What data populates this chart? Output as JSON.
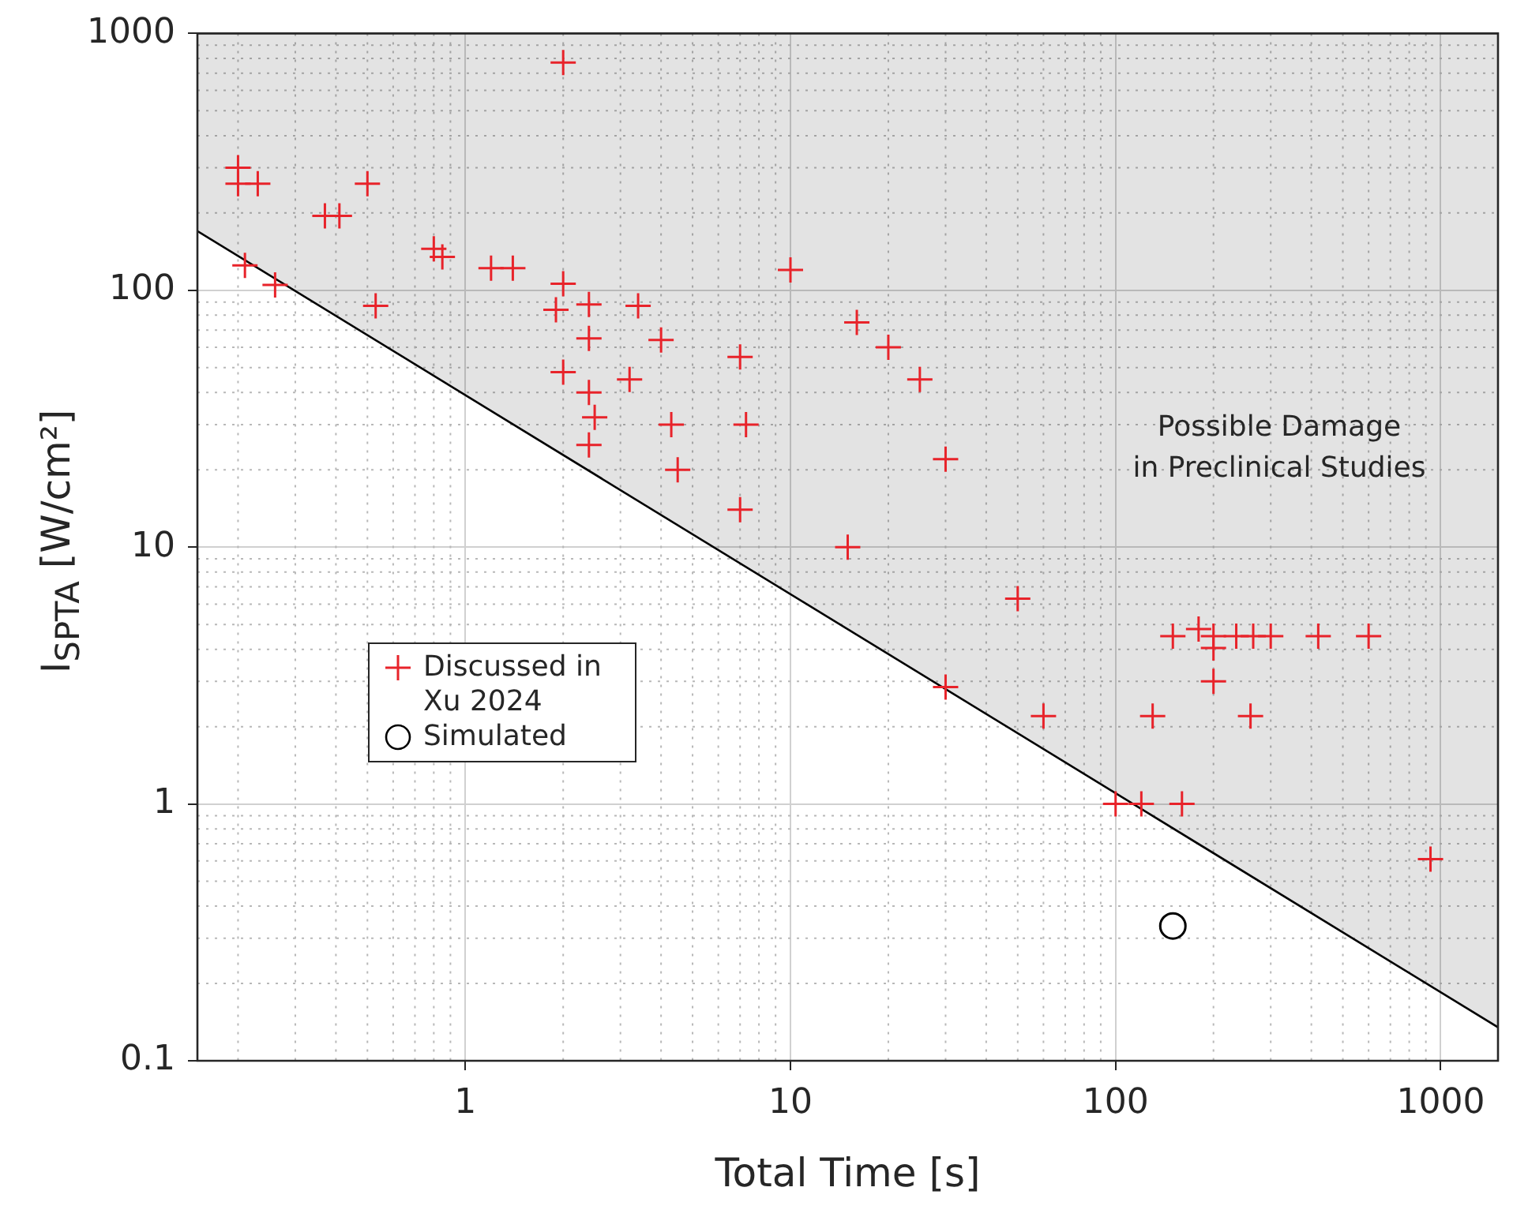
{
  "chart_data": {
    "type": "scatter",
    "xlabel": "Total Time [s]",
    "ylabel": "I$_{SPTA}$  [W/cm²]",
    "log": "xy",
    "xlim": [
      0.15,
      1500
    ],
    "xticks": [
      1,
      10,
      100,
      1000
    ],
    "ylim": [
      0.1,
      1000
    ],
    "yticks": [
      0.1,
      1,
      10,
      100,
      1000
    ],
    "grid": true,
    "legend": "left",
    "annotations": [
      "Possible Damage\nin Preclinical Studies"
    ],
    "series": [
      {
        "type": "line",
        "color": "#000000",
        "x": [
          0.15,
          1500
        ],
        "values": [
          170,
          0.135
        ],
        "lower": [
          170,
          0.135
        ],
        "upper": [
          1000,
          1000
        ]
      },
      {
        "name": "Discussed in Xu 2024",
        "color": "#e8232a",
        "marker": "cross",
        "x": [
          0.2,
          0.2,
          0.23,
          0.21,
          0.26,
          0.37,
          0.41,
          0.5,
          0.53,
          0.8,
          0.85,
          1.2,
          1.4,
          2,
          2,
          1.9,
          2.4,
          2.4,
          2,
          2.4,
          2.5,
          2.4,
          3.2,
          3.4,
          4,
          4.3,
          4.5,
          7,
          7.3,
          7,
          10,
          16,
          20,
          25,
          15,
          30,
          30,
          50,
          60,
          100,
          120,
          160,
          130,
          150,
          180,
          200,
          200,
          200,
          235,
          265,
          300,
          260,
          420,
          600,
          930
        ],
        "values": [
          300,
          260,
          260,
          125,
          105,
          195,
          195,
          260,
          87,
          145,
          135,
          122,
          122,
          770,
          106,
          84,
          88,
          65,
          48,
          40,
          32,
          25,
          45,
          87,
          64,
          30,
          20,
          55,
          30,
          14,
          120,
          75,
          60,
          45,
          10,
          22,
          2.85,
          6.3,
          2.2,
          1,
          1,
          1,
          2.2,
          4.5,
          4.8,
          4.5,
          4.05,
          3,
          4.5,
          4.5,
          4.5,
          2.2,
          4.5,
          4.5,
          0.61
        ]
      },
      {
        "name": "Simulated",
        "color": "#000000",
        "marker": "circle",
        "x": [
          150
        ],
        "values": [
          0.335
        ]
      }
    ]
  }
}
